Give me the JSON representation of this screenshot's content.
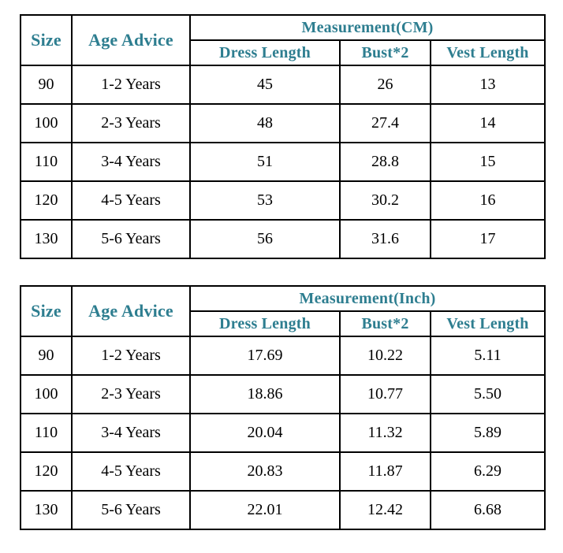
{
  "colors": {
    "header_text": "#2e7e90",
    "body_text": "#000000",
    "border": "#000000",
    "background": "#ffffff"
  },
  "chart_data": [
    {
      "type": "table",
      "title": "Measurement(CM)",
      "header": {
        "size": "Size",
        "age": "Age Advice",
        "group": "Measurement(CM)",
        "sub": [
          "Dress Length",
          "Bust*2",
          "Vest Length"
        ]
      },
      "rows": [
        {
          "size": "90",
          "age": "1-2 Years",
          "dress_length": "45",
          "bust2": "26",
          "vest_length": "13"
        },
        {
          "size": "100",
          "age": "2-3 Years",
          "dress_length": "48",
          "bust2": "27.4",
          "vest_length": "14"
        },
        {
          "size": "110",
          "age": "3-4 Years",
          "dress_length": "51",
          "bust2": "28.8",
          "vest_length": "15"
        },
        {
          "size": "120",
          "age": "4-5 Years",
          "dress_length": "53",
          "bust2": "30.2",
          "vest_length": "16"
        },
        {
          "size": "130",
          "age": "5-6 Years",
          "dress_length": "56",
          "bust2": "31.6",
          "vest_length": "17"
        }
      ]
    },
    {
      "type": "table",
      "title": "Measurement(Inch)",
      "header": {
        "size": "Size",
        "age": "Age Advice",
        "group": "Measurement(Inch)",
        "sub": [
          "Dress Length",
          "Bust*2",
          "Vest Length"
        ]
      },
      "rows": [
        {
          "size": "90",
          "age": "1-2 Years",
          "dress_length": "17.69",
          "bust2": "10.22",
          "vest_length": "5.11"
        },
        {
          "size": "100",
          "age": "2-3 Years",
          "dress_length": "18.86",
          "bust2": "10.77",
          "vest_length": "5.50"
        },
        {
          "size": "110",
          "age": "3-4 Years",
          "dress_length": "20.04",
          "bust2": "11.32",
          "vest_length": "5.89"
        },
        {
          "size": "120",
          "age": "4-5 Years",
          "dress_length": "20.83",
          "bust2": "11.87",
          "vest_length": "6.29"
        },
        {
          "size": "130",
          "age": "5-6 Years",
          "dress_length": "22.01",
          "bust2": "12.42",
          "vest_length": "6.68"
        }
      ]
    }
  ]
}
